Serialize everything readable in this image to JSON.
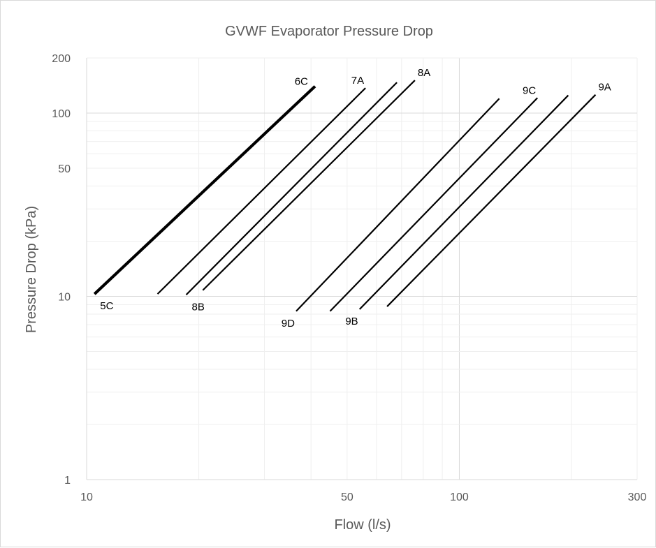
{
  "chart_data": {
    "type": "line",
    "title": "GVWF Evaporator Pressure Drop",
    "xlabel": "Flow (l/s)",
    "ylabel": "Pressure Drop (kPa)",
    "x_scale": "log",
    "y_scale": "log",
    "xlim": [
      10,
      300
    ],
    "ylim": [
      1,
      200
    ],
    "x_ticks": [
      "10",
      "50",
      "100",
      "300"
    ],
    "y_ticks": [
      "1",
      "10",
      "50",
      "100",
      "200"
    ],
    "grid": true,
    "legend": "none",
    "series": [
      {
        "name": "5C",
        "x": [
          10.5,
          41
        ],
        "y": [
          10.3,
          140
        ],
        "emphasis": true,
        "label_at": "start"
      },
      {
        "name": "6C",
        "x": [
          10.5,
          41
        ],
        "y": [
          10.3,
          140
        ],
        "emphasis": true,
        "label_at": "end"
      },
      {
        "name": "7A",
        "x": [
          15.5,
          56
        ],
        "y": [
          10.3,
          137
        ],
        "label_at": "end"
      },
      {
        "name": "8B",
        "x": [
          18.5,
          68
        ],
        "y": [
          10.2,
          147
        ],
        "label_at": "start"
      },
      {
        "name": "8A",
        "x": [
          20.5,
          76
        ],
        "y": [
          10.8,
          151
        ],
        "label_at": "end"
      },
      {
        "name": "9D",
        "x": [
          36.5,
          128
        ],
        "y": [
          8.3,
          120
        ],
        "label_at": "start"
      },
      {
        "name": "9C",
        "x": [
          45,
          162
        ],
        "y": [
          8.3,
          121
        ],
        "label_at": "end"
      },
      {
        "name": "9B",
        "x": [
          54,
          196
        ],
        "y": [
          8.5,
          125
        ],
        "label_at": "start"
      },
      {
        "name": "9A",
        "x": [
          64,
          232
        ],
        "y": [
          8.8,
          126
        ],
        "label_at": "end"
      }
    ]
  }
}
